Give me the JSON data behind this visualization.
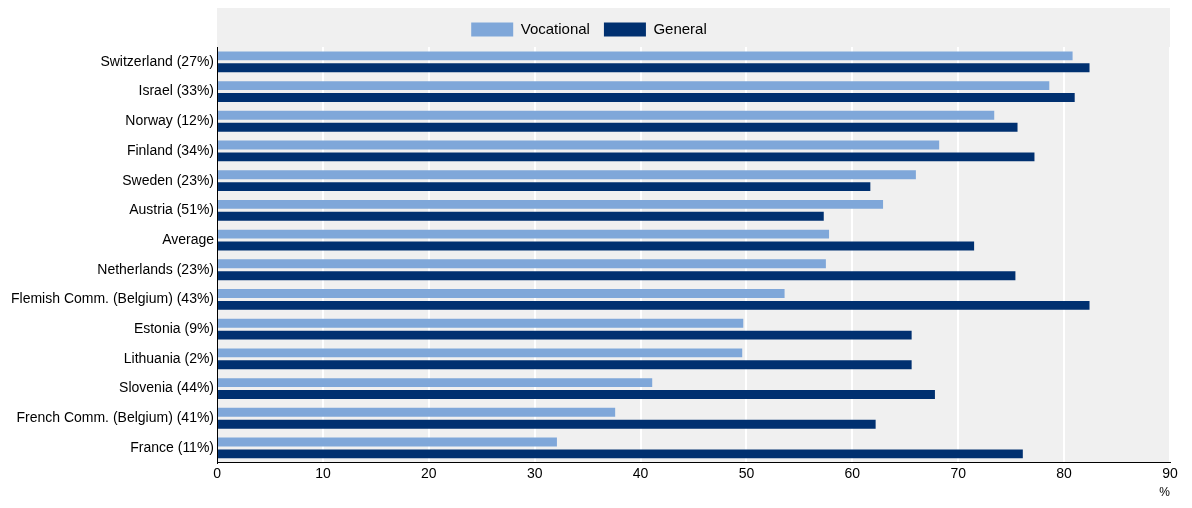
{
  "chart_data": {
    "type": "bar",
    "orientation": "horizontal",
    "xlabel": "%",
    "categories": [
      "Switzerland (27%)",
      "Israel (33%)",
      "Norway (12%)",
      "Finland (34%)",
      "Sweden (23%)",
      "Austria (51%)",
      "Average",
      "Netherlands (23%)",
      "Flemish Comm. (Belgium) (43%)",
      "Estonia (9%)",
      "Lithuania (2%)",
      "Slovenia (44%)",
      "French Comm. (Belgium) (41%)",
      "France (11%)"
    ],
    "series": [
      {
        "name": "Vocational",
        "color": "#7fa7d9",
        "values": [
          80.8,
          78.6,
          73.4,
          68.2,
          66.0,
          62.9,
          57.8,
          57.5,
          53.6,
          49.7,
          49.6,
          41.1,
          37.6,
          32.1
        ]
      },
      {
        "name": "General",
        "color": "#003070",
        "values": [
          82.4,
          81.0,
          75.6,
          77.2,
          61.7,
          57.3,
          71.5,
          75.4,
          82.4,
          65.6,
          65.6,
          67.8,
          62.2,
          76.1
        ]
      }
    ],
    "xlim": [
      0,
      90
    ],
    "xticks": [
      0,
      10,
      20,
      30,
      40,
      50,
      60,
      70,
      80,
      90
    ],
    "grid": "x",
    "legend": "top"
  }
}
